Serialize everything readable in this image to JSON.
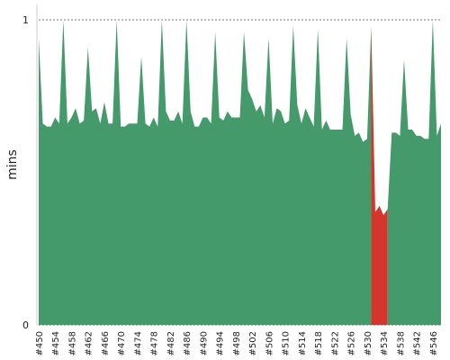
{
  "chart_data": {
    "type": "area",
    "y_label": "mins",
    "categories": [
      "#450",
      null,
      null,
      null,
      "#454",
      null,
      null,
      null,
      "#458",
      null,
      null,
      null,
      "#462",
      null,
      null,
      null,
      "#466",
      null,
      null,
      null,
      "#470",
      null,
      null,
      null,
      "#474",
      null,
      null,
      null,
      "#478",
      null,
      null,
      null,
      "#482",
      null,
      null,
      null,
      "#486",
      null,
      null,
      null,
      "#490",
      null,
      null,
      null,
      "#494",
      null,
      null,
      null,
      "#498",
      null,
      null,
      null,
      "#502",
      null,
      null,
      null,
      "#506",
      null,
      null,
      null,
      "#510",
      null,
      null,
      null,
      "#514",
      null,
      null,
      null,
      "#518",
      null,
      null,
      null,
      "#522",
      null,
      null,
      null,
      "#526",
      null,
      null,
      null,
      "#530",
      null,
      null,
      null,
      "#534",
      null,
      null,
      null,
      "#538",
      null,
      null,
      null,
      "#542",
      null,
      null,
      null,
      "#546",
      null,
      null
    ],
    "values": [
      0.94,
      0.66,
      0.65,
      0.65,
      0.68,
      0.66,
      1.0,
      0.66,
      0.68,
      0.71,
      0.66,
      0.67,
      0.91,
      0.7,
      0.71,
      0.66,
      0.73,
      0.66,
      0.66,
      1.0,
      0.65,
      0.65,
      0.66,
      0.66,
      0.66,
      0.88,
      0.66,
      0.65,
      0.68,
      0.65,
      1.0,
      0.7,
      0.67,
      0.67,
      0.7,
      0.66,
      1.0,
      0.7,
      0.65,
      0.65,
      0.68,
      0.68,
      0.66,
      0.96,
      0.68,
      0.67,
      0.7,
      0.68,
      0.68,
      0.68,
      0.96,
      0.77,
      0.74,
      0.7,
      0.72,
      0.68,
      0.94,
      0.66,
      0.71,
      0.7,
      0.66,
      0.67,
      0.98,
      0.72,
      0.66,
      0.71,
      0.68,
      0.65,
      0.97,
      0.64,
      0.67,
      0.64,
      0.64,
      0.64,
      0.64,
      0.94,
      0.69,
      0.62,
      0.63,
      0.6,
      0.61,
      0.98,
      0.37,
      0.39,
      0.36,
      0.38,
      0.63,
      0.63,
      0.62,
      0.87,
      0.64,
      0.64,
      0.62,
      0.62,
      0.61,
      0.61,
      1.0,
      0.62,
      0.66
    ],
    "colors": [
      "#459a6b",
      "#459a6b",
      "#459a6b",
      "#459a6b",
      "#459a6b",
      "#459a6b",
      "#459a6b",
      "#459a6b",
      "#459a6b",
      "#459a6b",
      "#459a6b",
      "#459a6b",
      "#459a6b",
      "#459a6b",
      "#459a6b",
      "#459a6b",
      "#459a6b",
      "#459a6b",
      "#459a6b",
      "#459a6b",
      "#459a6b",
      "#459a6b",
      "#459a6b",
      "#459a6b",
      "#459a6b",
      "#459a6b",
      "#459a6b",
      "#459a6b",
      "#459a6b",
      "#459a6b",
      "#459a6b",
      "#459a6b",
      "#459a6b",
      "#459a6b",
      "#459a6b",
      "#459a6b",
      "#459a6b",
      "#459a6b",
      "#459a6b",
      "#459a6b",
      "#459a6b",
      "#459a6b",
      "#459a6b",
      "#459a6b",
      "#459a6b",
      "#459a6b",
      "#459a6b",
      "#459a6b",
      "#459a6b",
      "#459a6b",
      "#459a6b",
      "#459a6b",
      "#459a6b",
      "#459a6b",
      "#459a6b",
      "#459a6b",
      "#459a6b",
      "#459a6b",
      "#459a6b",
      "#459a6b",
      "#459a6b",
      "#459a6b",
      "#459a6b",
      "#459a6b",
      "#459a6b",
      "#459a6b",
      "#459a6b",
      "#459a6b",
      "#459a6b",
      "#459a6b",
      "#459a6b",
      "#459a6b",
      "#459a6b",
      "#459a6b",
      "#459a6b",
      "#459a6b",
      "#459a6b",
      "#459a6b",
      "#459a6b",
      "#459a6b",
      "#459a6b",
      "#459a6b",
      "#d6352c",
      "#d6352c",
      "#d6352c",
      "#d6352c",
      "#459a6b",
      "#459a6b",
      "#459a6b",
      "#459a6b",
      "#459a6b",
      "#459a6b",
      "#459a6b",
      "#459a6b",
      "#459a6b",
      "#459a6b",
      "#459a6b",
      "#459a6b",
      "#459a6b"
    ],
    "ylim": [
      0,
      1
    ],
    "yticks": [
      0,
      1
    ],
    "grid": true
  }
}
